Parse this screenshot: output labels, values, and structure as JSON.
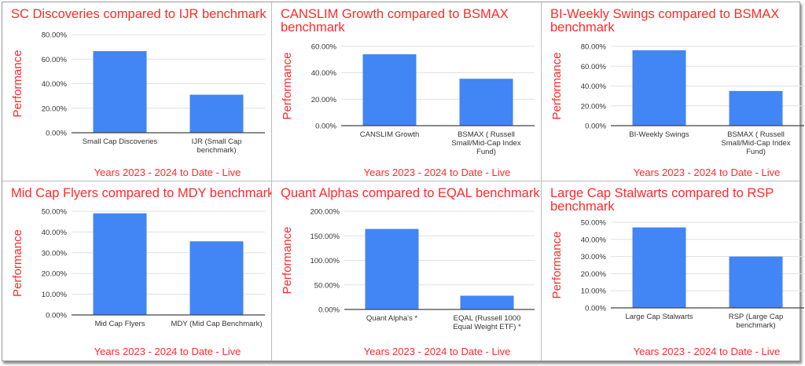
{
  "colors": {
    "bar": "#4285f4",
    "title": "#ff2a2a",
    "grid": "#e0e0e0",
    "axis": "#444444",
    "tick_text": "#333333"
  },
  "chart_data": [
    {
      "type": "bar",
      "title": "SC Discoveries compared to IJR benchmark",
      "ylabel": "Performance",
      "xlabel": "Years 2023 - 2024 to Date - Live",
      "categories": [
        [
          "Small Cap Discoveries"
        ],
        [
          "IJR (Small Cap",
          "benchmark)"
        ]
      ],
      "values": [
        66.5,
        31
      ],
      "ylim": [
        0,
        80
      ],
      "ticks": [
        "0.00%",
        "20.00%",
        "40.00%",
        "60.00%",
        "80.00%"
      ],
      "grid": true
    },
    {
      "type": "bar",
      "title": "CANSLIM Growth compared to BSMAX benchmark",
      "ylabel": "Performance",
      "xlabel": "Years 2023 - 2024 to Date - Live",
      "categories": [
        [
          "CANSLIM Growth"
        ],
        [
          "BSMAX ( Russell",
          "Small/Mid-Cap Index",
          "Fund)"
        ]
      ],
      "values": [
        54,
        35.5
      ],
      "ylim": [
        0,
        60
      ],
      "ticks": [
        "0.00%",
        "20.00%",
        "40.00%",
        "60.00%"
      ],
      "grid": true
    },
    {
      "type": "bar",
      "title": "BI-Weekly Swings compared to BSMAX benchmark",
      "ylabel": "Performance",
      "xlabel": "Years 2023 - 2024 to Date - Live",
      "categories": [
        [
          "BI-Weekly Swings"
        ],
        [
          "BSMAX ( Russell",
          "Small/Mid-Cap Index",
          "Fund)"
        ]
      ],
      "values": [
        76,
        35
      ],
      "ylim": [
        0,
        80
      ],
      "ticks": [
        "0.00%",
        "20.00%",
        "40.00%",
        "60.00%",
        "80.00%"
      ],
      "grid": true
    },
    {
      "type": "bar",
      "title": "Mid Cap Flyers compared to MDY benchmark",
      "ylabel": "Performance",
      "xlabel": "Years 2023 - 2024 to Date - Live",
      "categories": [
        [
          "Mid Cap Flyers"
        ],
        [
          "MDY (Mid Cap Benchmark)"
        ]
      ],
      "values": [
        49,
        35.5
      ],
      "ylim": [
        0,
        50
      ],
      "ticks": [
        "0.00%",
        "10.00%",
        "20.00%",
        "30.00%",
        "40.00%",
        "50.00%"
      ],
      "grid": true
    },
    {
      "type": "bar",
      "title": "Quant Alphas compared to EQAL benchmark",
      "ylabel": "Performance",
      "xlabel": "Years 2023 - 2024 to Date - Live",
      "categories": [
        [
          "Quant Alpha's   *"
        ],
        [
          "EQAL (Russell 1000",
          "Equal Weight ETF)  *"
        ]
      ],
      "values": [
        164,
        28
      ],
      "ylim": [
        0,
        200
      ],
      "ticks": [
        "0.00%",
        "50.00%",
        "100.00%",
        "150.00%",
        "200.00%"
      ],
      "grid": true
    },
    {
      "type": "bar",
      "title": "Large Cap Stalwarts compared to RSP benchmark",
      "ylabel": "Performance",
      "xlabel": "Years 2023 - 2024 to Date - Live",
      "categories": [
        [
          "Large Cap Stalwarts"
        ],
        [
          "RSP (Large Cap",
          "benchmark)"
        ]
      ],
      "values": [
        47,
        30
      ],
      "ylim": [
        0,
        50
      ],
      "ticks": [
        "0.00%",
        "10.00%",
        "20.00%",
        "30.00%",
        "40.00%",
        "50.00%"
      ],
      "grid": true
    }
  ]
}
